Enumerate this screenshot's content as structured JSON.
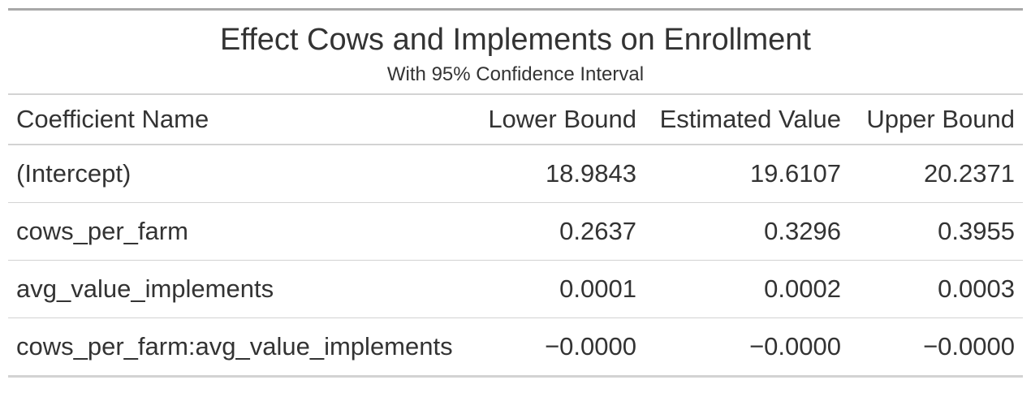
{
  "table": {
    "title": "Effect Cows and Implements on Enrollment",
    "subtitle": "With 95% Confidence Interval",
    "columns": [
      "Coefficient Name",
      "Lower Bound",
      "Estimated Value",
      "Upper Bound"
    ],
    "rows": [
      {
        "name": "(Intercept)",
        "lower": "18.9843",
        "estimate": "19.6107",
        "upper": "20.2371"
      },
      {
        "name": "cows_per_farm",
        "lower": "0.2637",
        "estimate": "0.3296",
        "upper": "0.3955"
      },
      {
        "name": "avg_value_implements",
        "lower": "0.0001",
        "estimate": "0.0002",
        "upper": "0.0003"
      },
      {
        "name": "cows_per_farm:avg_value_implements",
        "lower": "−0.0000",
        "estimate": "−0.0000",
        "upper": "−0.0000"
      }
    ]
  }
}
